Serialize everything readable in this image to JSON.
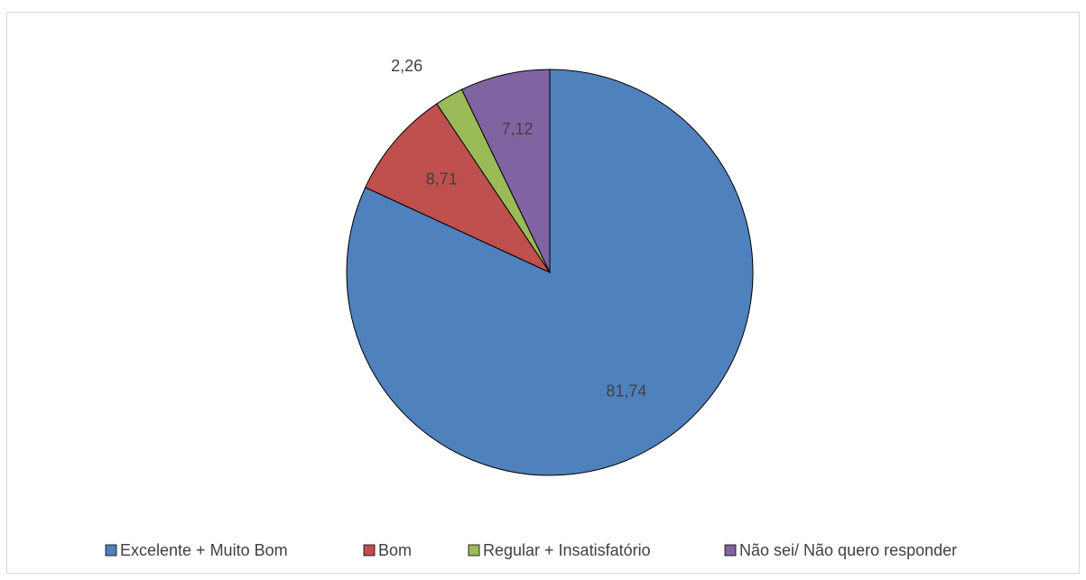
{
  "chart_data": {
    "type": "pie",
    "start_angle_deg": 0,
    "direction": "clockwise",
    "slices": [
      {
        "label": "Excelente + Muito Bom",
        "value": 81.74,
        "display": "81,74",
        "color": "#4f81bd"
      },
      {
        "label": "Bom",
        "value": 8.71,
        "display": "8,71",
        "color": "#c0504d"
      },
      {
        "label": "Regular + Insatisfatório",
        "value": 2.26,
        "display": "2,26",
        "color": "#9bbb59"
      },
      {
        "label": "Não sei/ Não quero responder",
        "value": 7.12,
        "display": "7,12",
        "color": "#8064a2"
      }
    ],
    "legend_position": "bottom"
  }
}
